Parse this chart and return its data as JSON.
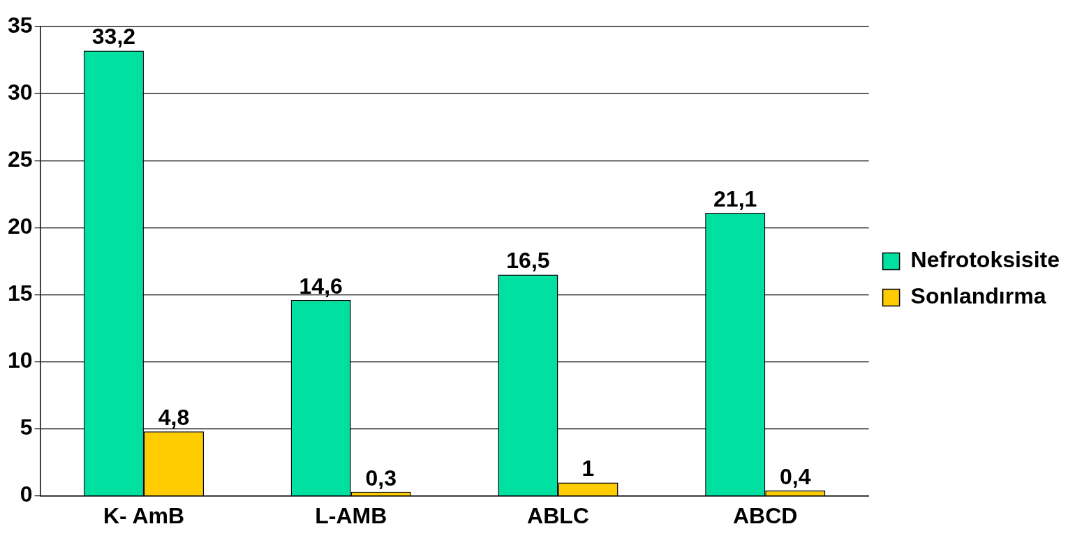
{
  "chart_data": {
    "type": "bar",
    "categories": [
      "K- AmB",
      "L-AMB",
      "ABLC",
      "ABCD"
    ],
    "series": [
      {
        "name": "Nefrotoksisite",
        "color": "#00e0a0",
        "values": [
          33.2,
          14.6,
          16.5,
          21.1
        ],
        "value_labels": [
          "33,2",
          "14,6",
          "16,5",
          "21,1"
        ]
      },
      {
        "name": "Sonlandırma",
        "color": "#ffcc00",
        "values": [
          4.8,
          0.3,
          1,
          0.4
        ],
        "value_labels": [
          "4,8",
          "0,3",
          "1",
          "0,4"
        ]
      }
    ],
    "ylim": [
      0,
      35
    ],
    "yticks": [
      0,
      5,
      10,
      15,
      20,
      25,
      30,
      35
    ],
    "grid": "y",
    "legend": "right"
  }
}
